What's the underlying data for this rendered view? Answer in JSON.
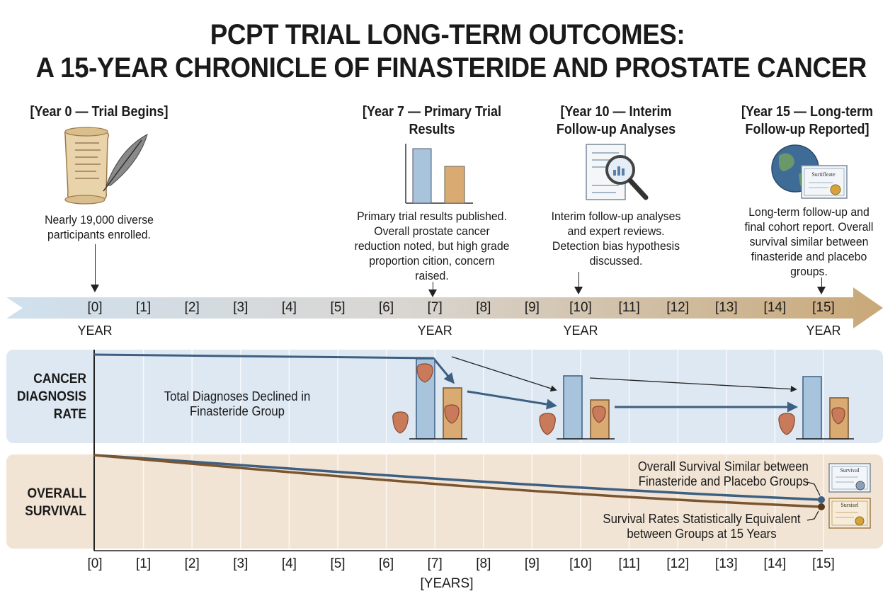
{
  "title": {
    "line1": "PCPT TRIAL LONG-TERM OUTCOMES:",
    "line2": "A 15-YEAR CHRONICLE OF FINASTERIDE AND PROSTATE CANCER"
  },
  "milestones": [
    {
      "year": 0,
      "heading": "[Year 0 — Trial Begins]",
      "icon": "scroll-quill-icon",
      "description": "Nearly 19,000 diverse participants enrolled."
    },
    {
      "year": 7,
      "heading": "[Year 7 — Primary Trial Results",
      "icon": "bar-chart-icon",
      "description": "Primary trial results published. Overall prostate cancer reduction noted, but high grade proportion cition, concern raised."
    },
    {
      "year": 10,
      "heading": "[Year 10 — Interim Follow-up Analyses",
      "icon": "magnifier-document-icon",
      "description": "Interim follow-up analyses and expert reviews. Detection bias hypothesis discussed."
    },
    {
      "year": 15,
      "heading": "[Year 15 — Long-term Follow-up Reported]",
      "icon": "globe-certificate-icon",
      "certificate_text": "Surtifleate",
      "description": "Long-term follow-up and final cohort report. Overall survival similar between finasteride and placebo groups."
    }
  ],
  "timeline": {
    "ticks": [
      "[0]",
      "[1]",
      "[2]",
      "[3]",
      "[4]",
      "[5]",
      "[6]",
      "[7]",
      "[8]",
      "[9]",
      "[10]",
      "[11]",
      "[12]",
      "[13]",
      "[14]",
      "[15]"
    ],
    "year_label": "YEAR",
    "year_label_at": [
      0,
      7,
      10,
      15
    ]
  },
  "diagnosis_panel": {
    "label": "CANCER DIAGNOSIS RATE",
    "note": "Total Diagnoses Declined in Finasteride Group",
    "colors": {
      "placebo": "#a8c4dd",
      "finasteride": "#d9aa72",
      "band": "#dde8f2",
      "line": "#3d5f82"
    }
  },
  "survival_panel": {
    "label": "OVERALL SURVIVAL",
    "note_upper": "Overall Survival Similar between Finasteride and Placebo Groups",
    "note_lower": "Survival Rates Statistically Equivalent between Groups at 15 Years",
    "certificate_upper": "Survival",
    "certificate_lower": "Sursisel",
    "colors": {
      "band": "#f2e4d4",
      "placebo_line": "#3d5f82",
      "finasteride_line": "#7a5530"
    }
  },
  "x_axis": {
    "ticks": [
      "[0]",
      "[1]",
      "[2]",
      "[3]",
      "[4]",
      "[5]",
      "[6]",
      "[7]",
      "[8]",
      "[9]",
      "[10]",
      "[11]",
      "[12]",
      "[13]",
      "[14]",
      "[15]"
    ],
    "label": "[YEARS]"
  }
}
